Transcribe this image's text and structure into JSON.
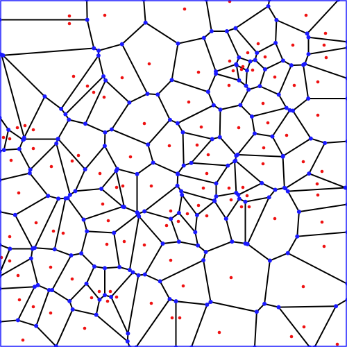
{
  "diagram": {
    "type": "voronoi",
    "site_count": 101,
    "colors": {
      "background": "#ffffff",
      "edge": "#000000",
      "site": "#ee1111",
      "vertex": "#1a1aff",
      "frame": "#1a1aff"
    }
  }
}
